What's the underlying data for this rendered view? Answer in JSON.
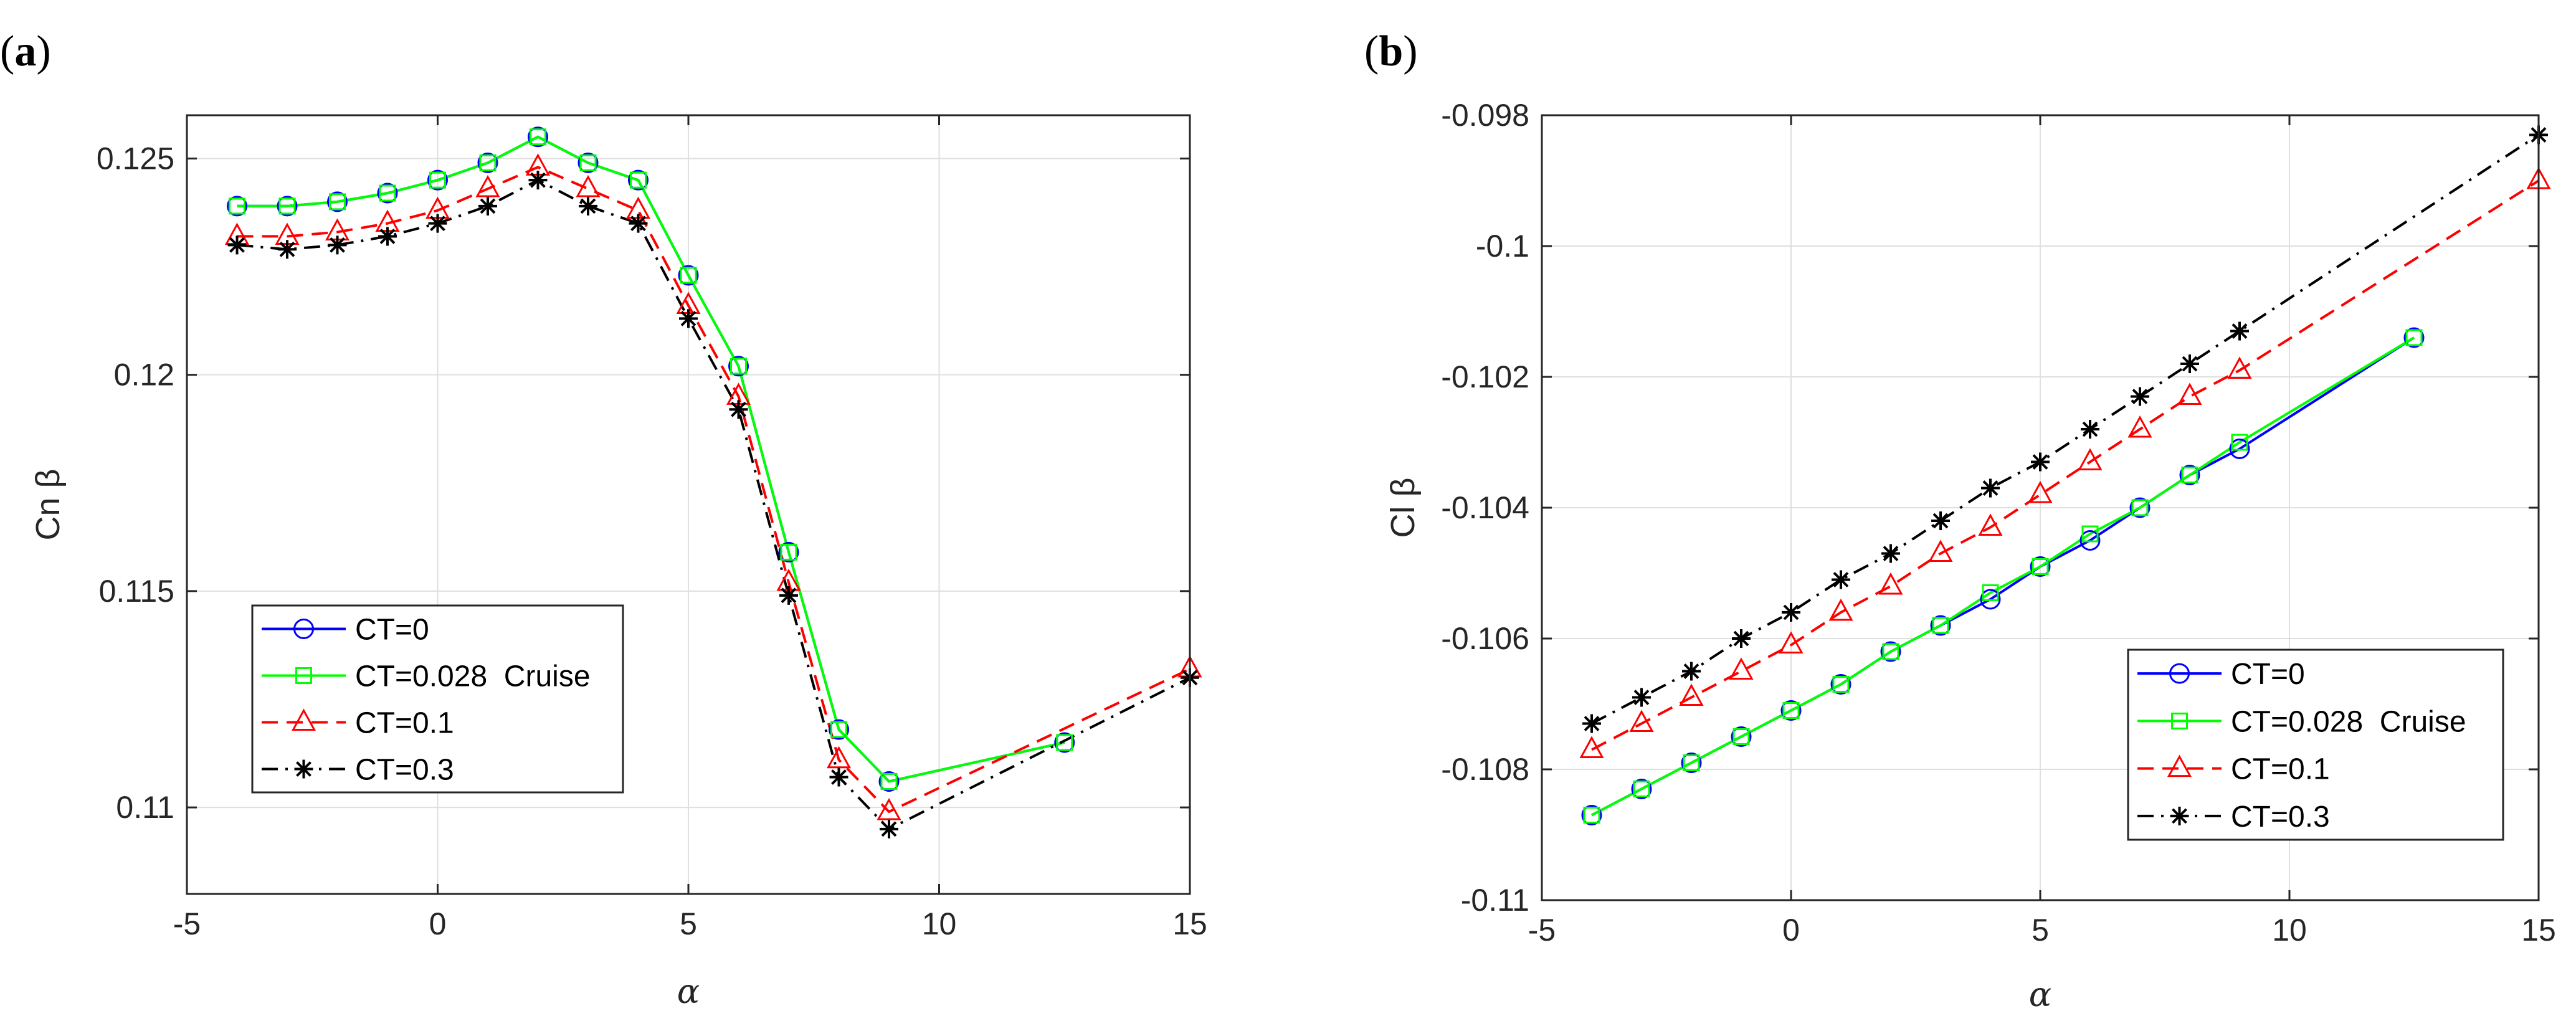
{
  "chart_data": [
    {
      "panel_label": "a",
      "type": "line",
      "xlabel": "α",
      "ylabel": "Cn β",
      "xlim": [
        -5,
        15
      ],
      "ylim": [
        0.108,
        0.126
      ],
      "xticks": [
        -5,
        0,
        5,
        10,
        15
      ],
      "yticks": [
        0.11,
        0.115,
        0.12,
        0.125
      ],
      "xtick_labels": [
        "-5",
        "0",
        "5",
        "10",
        "15"
      ],
      "ytick_labels": [
        "0.11",
        "0.115",
        "0.12",
        "0.125"
      ],
      "grid": true,
      "legend_position": "bottom-left",
      "series": [
        {
          "name": "CT=0",
          "color": "#0000ff",
          "dash": "solid",
          "marker": "circle",
          "x": [
            -4,
            -3,
            -2,
            -1,
            0,
            1,
            2,
            3,
            4,
            5,
            6,
            7,
            8,
            9,
            12.5
          ],
          "y": [
            0.1239,
            0.1239,
            0.124,
            0.1242,
            0.1245,
            0.1249,
            0.1255,
            0.1249,
            0.1245,
            0.1223,
            0.1202,
            0.1159,
            0.1118,
            0.1106,
            0.1115
          ]
        },
        {
          "name": "CT=0.028  Cruise",
          "color": "#00ff00",
          "dash": "solid",
          "marker": "square",
          "x": [
            -4,
            -3,
            -2,
            -1,
            0,
            1,
            2,
            3,
            4,
            5,
            6,
            7,
            8,
            9,
            12.5
          ],
          "y": [
            0.1239,
            0.1239,
            0.124,
            0.1242,
            0.1245,
            0.1249,
            0.1255,
            0.1249,
            0.1245,
            0.1223,
            0.1202,
            0.1159,
            0.1118,
            0.1106,
            0.1115
          ]
        },
        {
          "name": "CT=0.1",
          "color": "#ff0000",
          "dash": "dashed",
          "marker": "triangle",
          "x": [
            -4,
            -3,
            -2,
            -1,
            0,
            1,
            2,
            3,
            4,
            5,
            6,
            7,
            8,
            9,
            15
          ],
          "y": [
            0.1232,
            0.1232,
            0.1233,
            0.1235,
            0.1238,
            0.1243,
            0.1248,
            0.1243,
            0.1238,
            0.1216,
            0.1195,
            0.1152,
            0.1111,
            0.1099,
            0.1132
          ]
        },
        {
          "name": "CT=0.3",
          "color": "#000000",
          "dash": "dashdot",
          "marker": "asterisk",
          "x": [
            -4,
            -3,
            -2,
            -1,
            0,
            1,
            2,
            3,
            4,
            5,
            6,
            7,
            8,
            9,
            15
          ],
          "y": [
            0.123,
            0.1229,
            0.123,
            0.1232,
            0.1235,
            0.1239,
            0.1245,
            0.1239,
            0.1235,
            0.1213,
            0.1192,
            0.1149,
            0.1107,
            0.1095,
            0.113
          ]
        }
      ]
    },
    {
      "panel_label": "b",
      "type": "line",
      "xlabel": "α",
      "ylabel": "Cl β",
      "xlim": [
        -5,
        15
      ],
      "ylim": [
        -0.11,
        -0.098
      ],
      "xticks": [
        -5,
        0,
        5,
        10,
        15
      ],
      "yticks": [
        -0.11,
        -0.108,
        -0.106,
        -0.104,
        -0.102,
        -0.1,
        -0.098
      ],
      "xtick_labels": [
        "-5",
        "0",
        "5",
        "10",
        "15"
      ],
      "ytick_labels": [
        "-0.11",
        "-0.108",
        "-0.106",
        "-0.104",
        "-0.102",
        "-0.1",
        "-0.098"
      ],
      "grid": true,
      "legend_position": "bottom-right",
      "series": [
        {
          "name": "CT=0",
          "color": "#0000ff",
          "dash": "solid",
          "marker": "circle",
          "x": [
            -4,
            -3,
            -2,
            -1,
            0,
            1,
            2,
            3,
            4,
            5,
            6,
            7,
            8,
            9,
            12.5
          ],
          "y": [
            -0.1087,
            -0.1083,
            -0.1079,
            -0.1075,
            -0.1071,
            -0.1067,
            -0.1062,
            -0.1058,
            -0.1054,
            -0.1049,
            -0.1045,
            -0.104,
            -0.1035,
            -0.1031,
            -0.1014
          ]
        },
        {
          "name": "CT=0.028  Cruise",
          "color": "#00ff00",
          "dash": "solid",
          "marker": "square",
          "x": [
            -4,
            -3,
            -2,
            -1,
            0,
            1,
            2,
            3,
            4,
            5,
            6,
            7,
            8,
            9,
            12.5
          ],
          "y": [
            -0.1087,
            -0.1083,
            -0.1079,
            -0.1075,
            -0.1071,
            -0.1067,
            -0.1062,
            -0.1058,
            -0.1053,
            -0.1049,
            -0.1044,
            -0.104,
            -0.1035,
            -0.103,
            -0.1014
          ]
        },
        {
          "name": "CT=0.1",
          "color": "#ff0000",
          "dash": "dashed",
          "marker": "triangle",
          "x": [
            -4,
            -3,
            -2,
            -1,
            0,
            1,
            2,
            3,
            4,
            5,
            6,
            7,
            8,
            9,
            15
          ],
          "y": [
            -0.1077,
            -0.1073,
            -0.1069,
            -0.1065,
            -0.1061,
            -0.1056,
            -0.1052,
            -0.1047,
            -0.1043,
            -0.1038,
            -0.1033,
            -0.1028,
            -0.1023,
            -0.1019,
            -0.099
          ]
        },
        {
          "name": "CT=0.3",
          "color": "#000000",
          "dash": "dashdot",
          "marker": "asterisk",
          "x": [
            -4,
            -3,
            -2,
            -1,
            0,
            1,
            2,
            3,
            4,
            5,
            6,
            7,
            8,
            9,
            15
          ],
          "y": [
            -0.1073,
            -0.1069,
            -0.1065,
            -0.106,
            -0.1056,
            -0.1051,
            -0.1047,
            -0.1042,
            -0.1037,
            -0.1033,
            -0.1028,
            -0.1023,
            -0.1018,
            -0.1013,
            -0.0983
          ]
        }
      ]
    }
  ]
}
